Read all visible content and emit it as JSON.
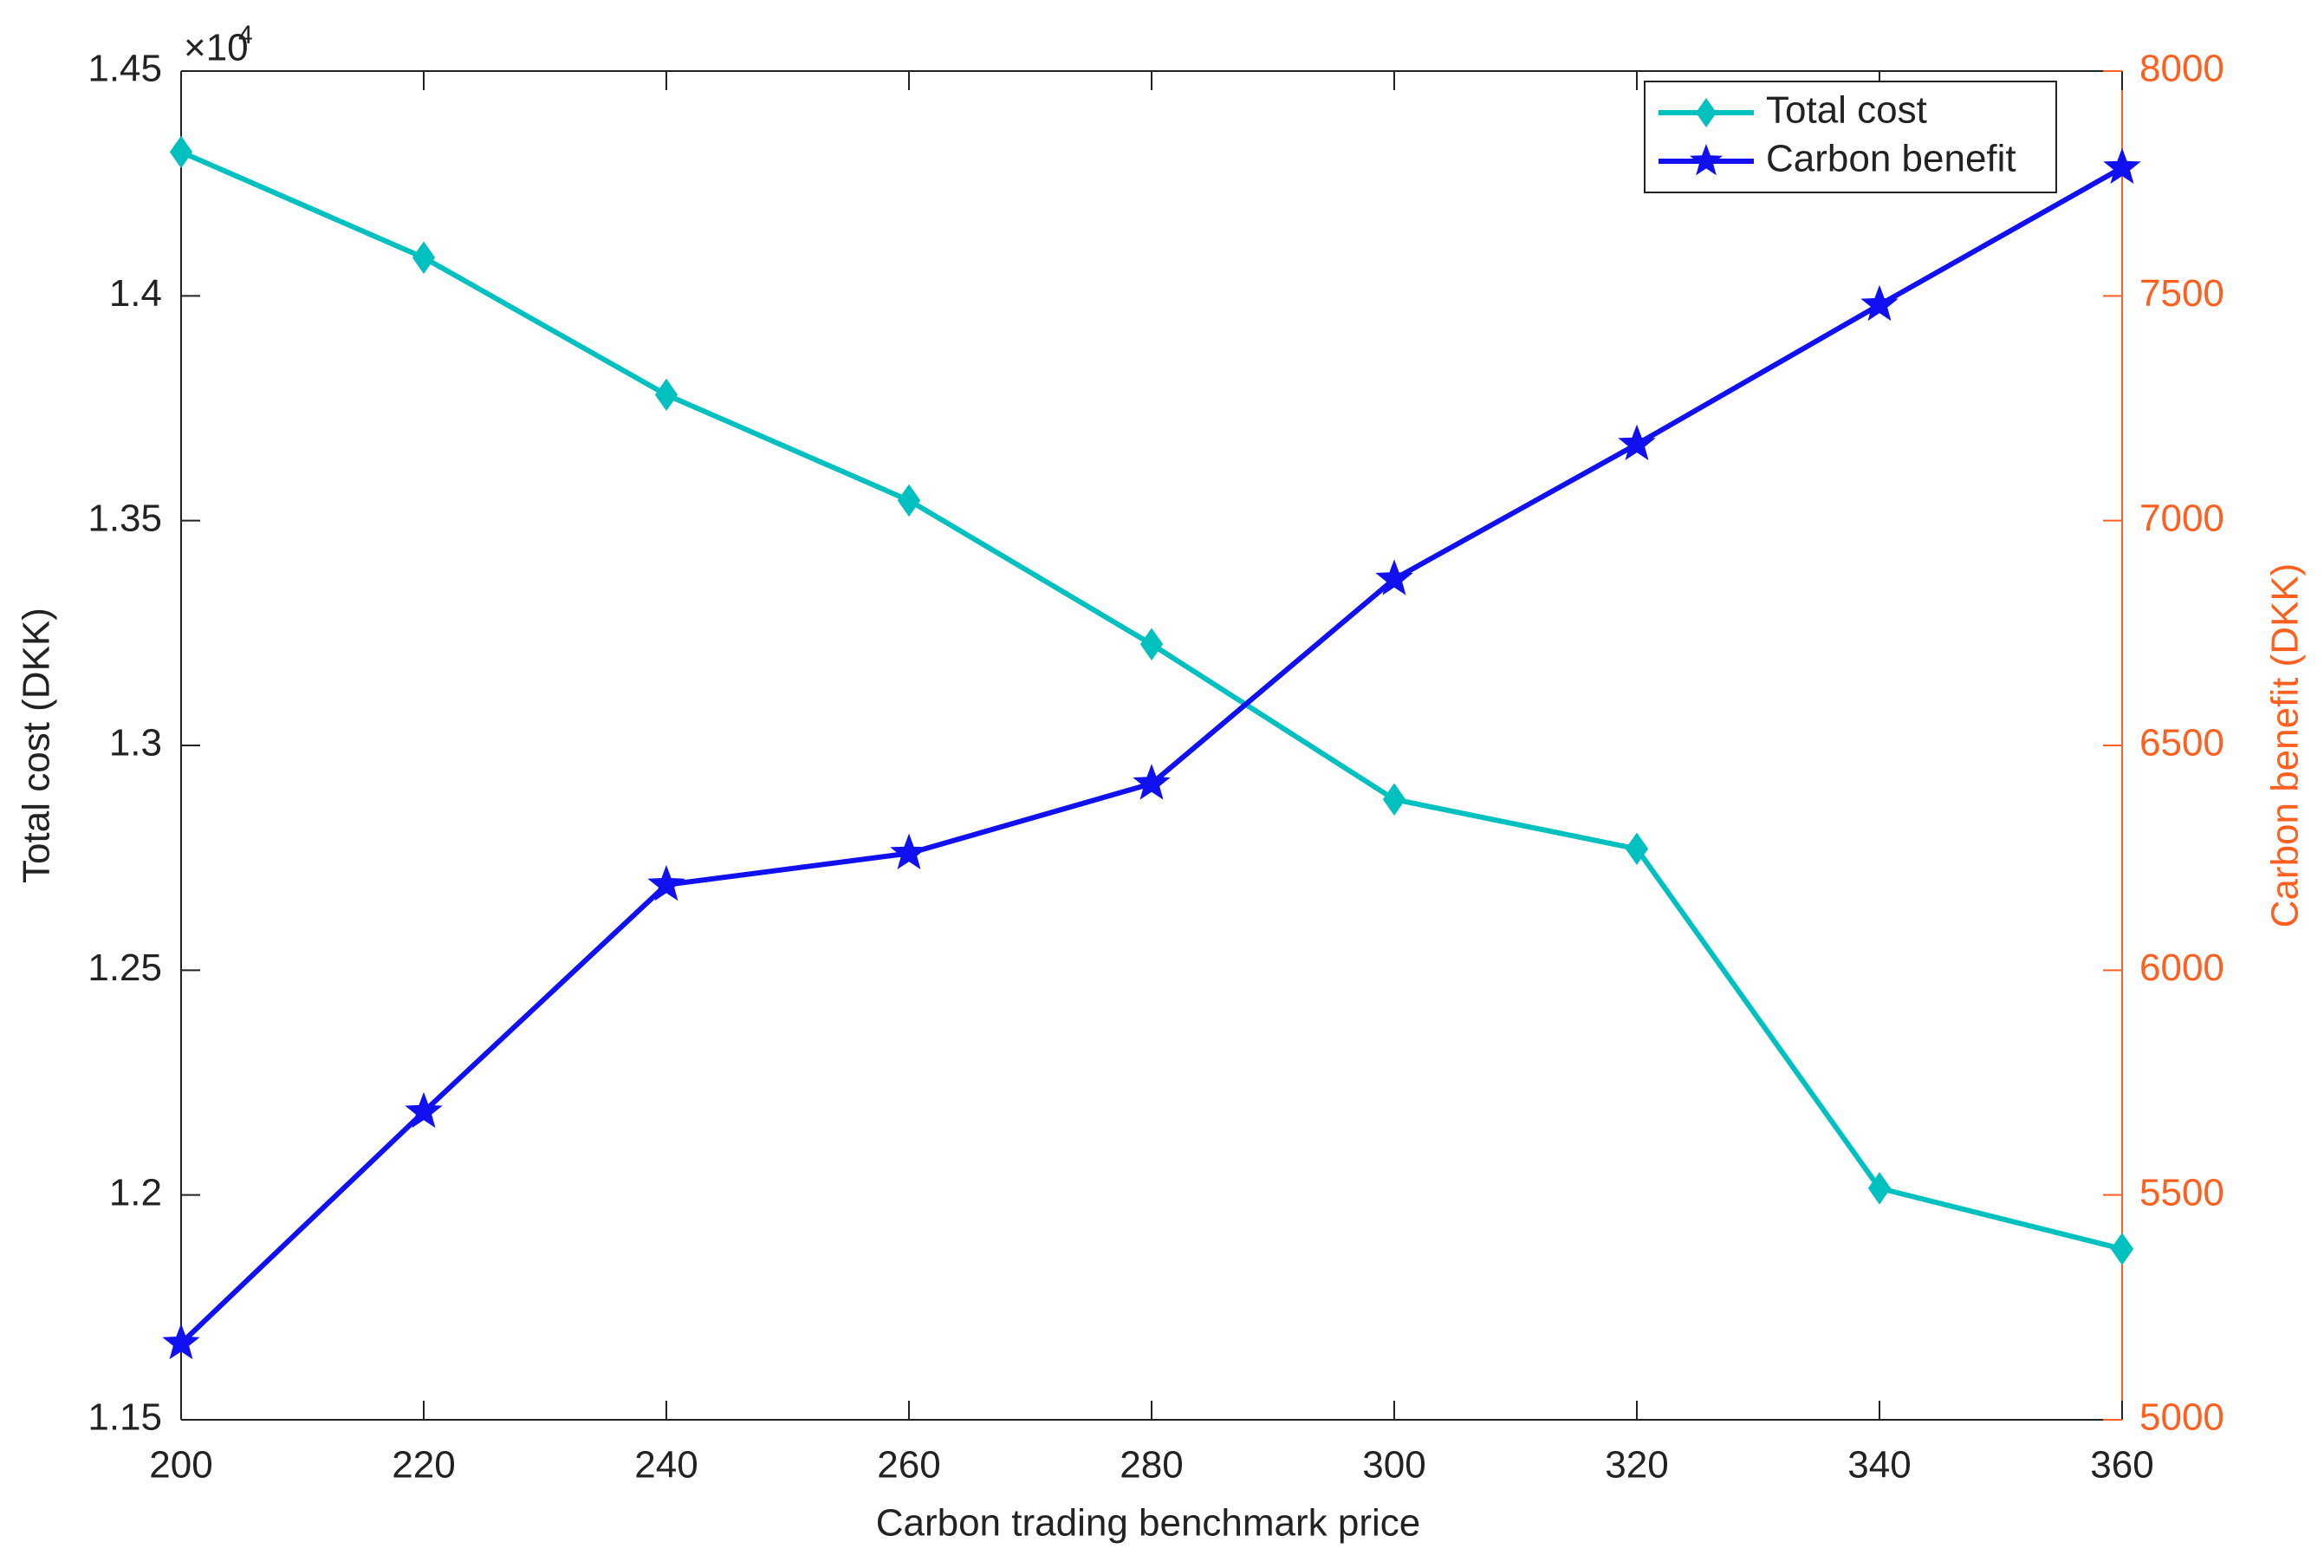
{
  "chart_data": {
    "type": "line",
    "x_label": "Carbon trading benchmark price",
    "y_label": "Total cost (DKK)",
    "y2_label": "Carbon benefit (DKK)",
    "y_multiplier_base": "×10",
    "y_multiplier_exponent": "4",
    "x": [
      200,
      220,
      240,
      260,
      280,
      300,
      320,
      340,
      360
    ],
    "series": [
      {
        "name": "Total cost",
        "color": "#00c0c0",
        "marker": "diamond",
        "axis": "y",
        "values": [
          14320,
          14085,
          13780,
          13545,
          13225,
          12880,
          12770,
          12015,
          11880
        ]
      },
      {
        "name": "Carbon benefit",
        "color": "#1010f0",
        "marker": "star",
        "axis": "y2",
        "values": [
          5170,
          5685,
          6190,
          6260,
          6415,
          6870,
          7170,
          7480,
          7785
        ]
      }
    ],
    "xlim": [
      200,
      360
    ],
    "xticks": [
      200,
      220,
      240,
      260,
      280,
      300,
      320,
      340,
      360
    ],
    "ylim": [
      11500,
      14500
    ],
    "yticks": [
      {
        "value": 11500,
        "label": "1.15"
      },
      {
        "value": 12000,
        "label": "1.2"
      },
      {
        "value": 12500,
        "label": "1.25"
      },
      {
        "value": 13000,
        "label": "1.3"
      },
      {
        "value": 13500,
        "label": "1.35"
      },
      {
        "value": 14000,
        "label": "1.4"
      },
      {
        "value": 14500,
        "label": "1.45"
      }
    ],
    "y2lim": [
      5000,
      8000
    ],
    "y2ticks": [
      5000,
      5500,
      6000,
      6500,
      7000,
      7500,
      8000
    ],
    "y2_color": "#ff6020",
    "grid": false,
    "legend_position": "upper right"
  }
}
